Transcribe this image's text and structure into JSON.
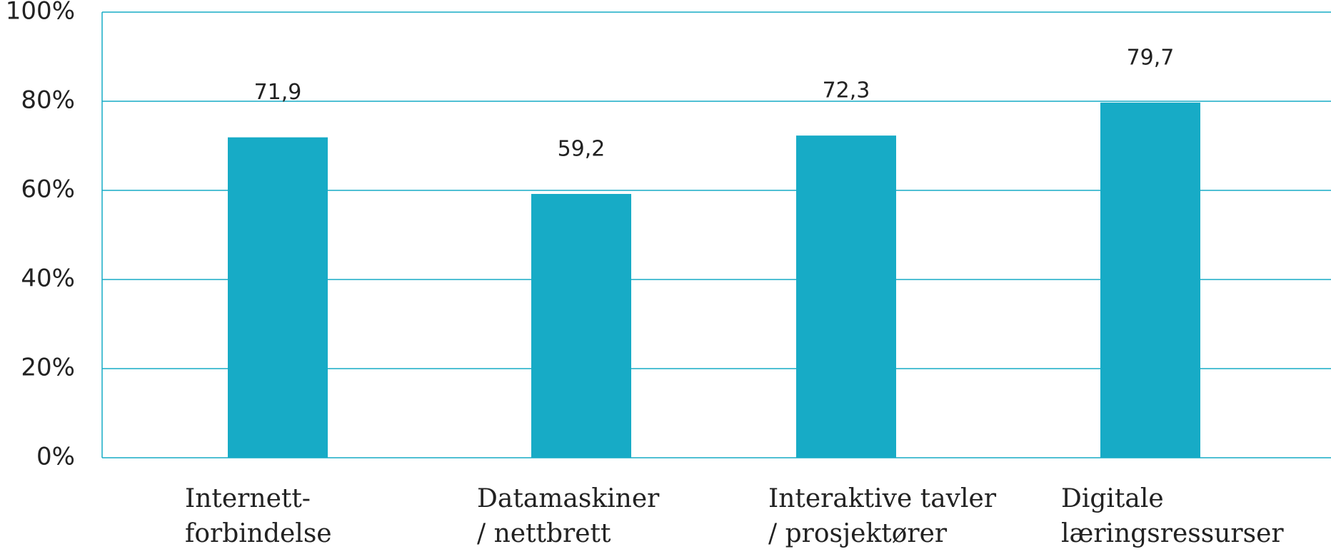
{
  "chart_data": {
    "type": "bar",
    "categories": [
      [
        "Internett-",
        "forbindelse"
      ],
      [
        "Datamaskiner",
        "/ nettbrett"
      ],
      [
        "Interaktive tavler",
        "/ prosjektører"
      ],
      [
        "Digitale",
        "læringsressurser"
      ]
    ],
    "values": [
      71.9,
      59.2,
      72.3,
      79.7
    ],
    "value_labels": [
      "71,9",
      "59,2",
      "72,3",
      "79,7"
    ],
    "color": "#17abc6",
    "ylim": [
      0,
      100
    ],
    "yticks": [
      {
        "value": 0,
        "label": "0%"
      },
      {
        "value": 20,
        "label": "20%"
      },
      {
        "value": 40,
        "label": "40%"
      },
      {
        "value": 60,
        "label": "60%"
      },
      {
        "value": 80,
        "label": "80%"
      },
      {
        "value": 100,
        "label": "100%"
      }
    ],
    "grid": true
  }
}
